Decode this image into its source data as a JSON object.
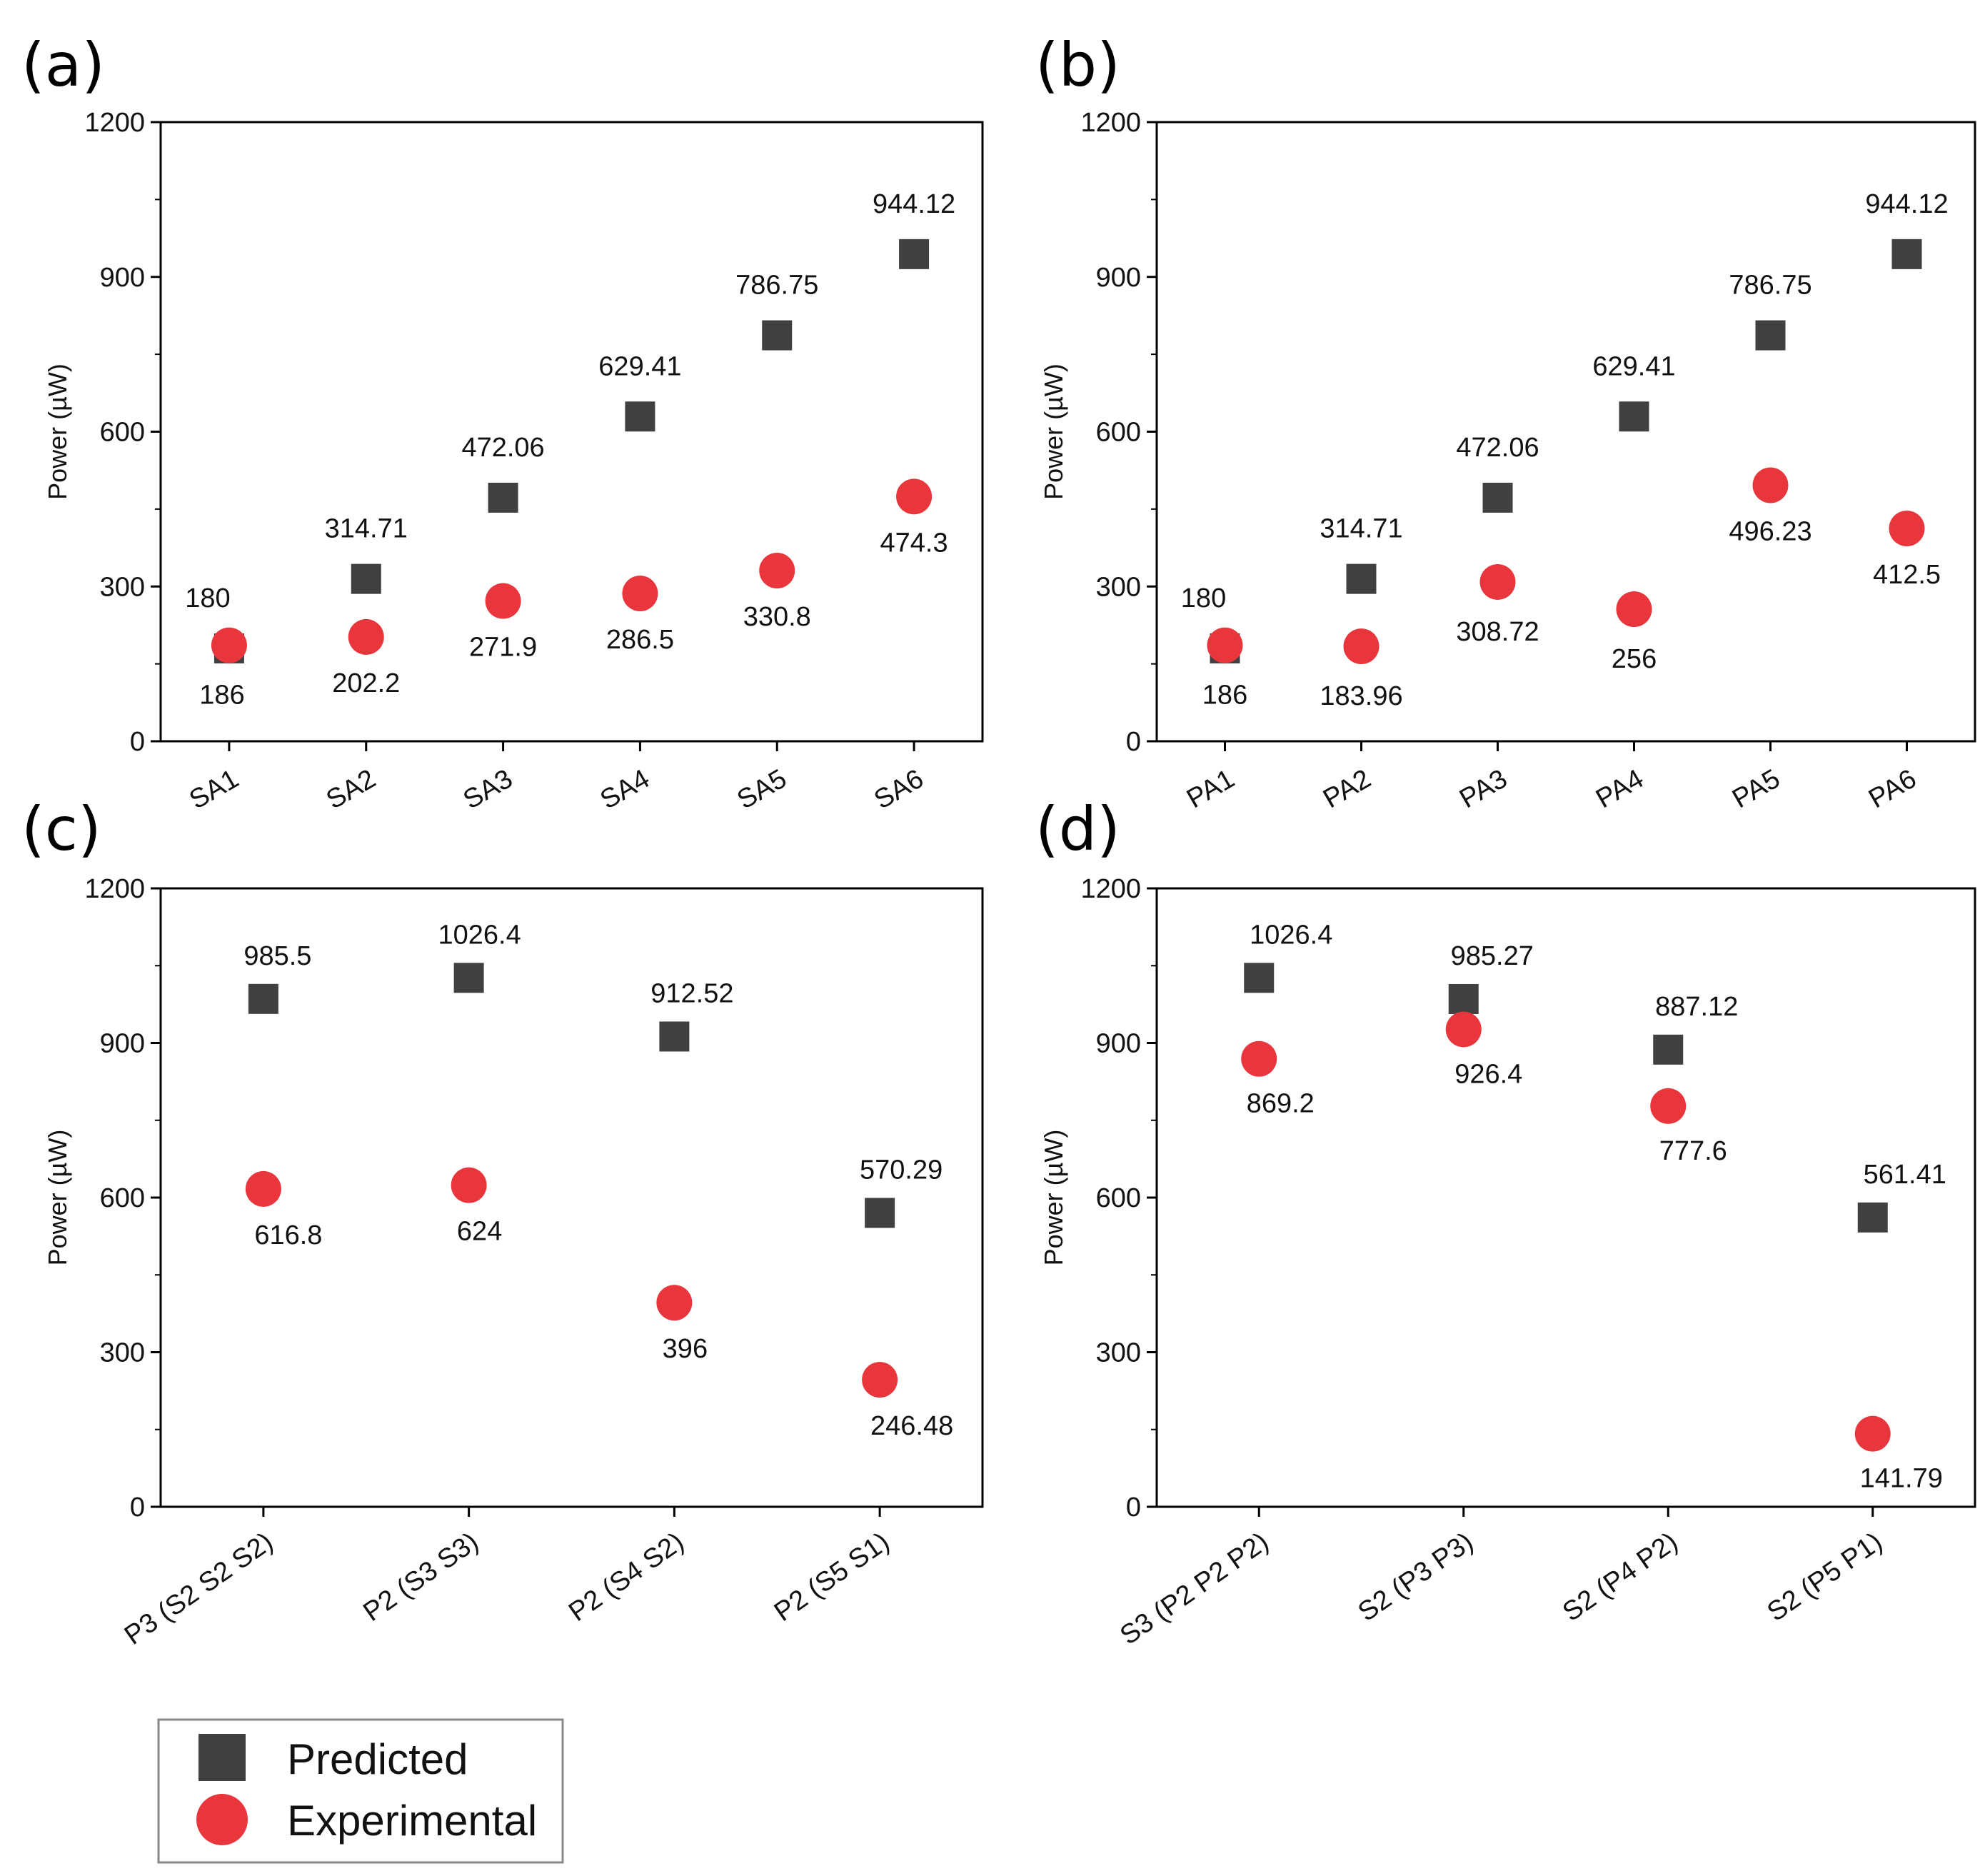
{
  "colors": {
    "predicted": "#404040",
    "experimental": "#e8363c",
    "axis": "#000000"
  },
  "legend": {
    "predicted": "Predicted",
    "experimental": "Experimental"
  },
  "chart_data": [
    {
      "id": "a",
      "panel_label": "(a)",
      "type": "scatter",
      "ylabel": "Power (µW)",
      "ylim": [
        0,
        1200
      ],
      "yticks": [
        "0",
        "300",
        "600",
        "900",
        "1200"
      ],
      "categories": [
        "SA1",
        "SA2",
        "SA3",
        "SA4",
        "SA5",
        "SA6"
      ],
      "series": [
        {
          "name": "Predicted",
          "values": [
            180,
            314.71,
            472.06,
            629.41,
            786.75,
            944.12
          ],
          "labels": [
            "180",
            "314.71",
            "472.06",
            "629.41",
            "786.75",
            "944.12"
          ]
        },
        {
          "name": "Experimental",
          "values": [
            186,
            202.2,
            271.9,
            286.5,
            330.8,
            474.3
          ],
          "labels": [
            "186",
            "202.2",
            "271.9",
            "286.5",
            "330.8",
            "474.3"
          ]
        }
      ]
    },
    {
      "id": "b",
      "panel_label": "(b)",
      "type": "scatter",
      "ylabel": "Power (µW)",
      "ylim": [
        0,
        1200
      ],
      "yticks": [
        "0",
        "300",
        "600",
        "900",
        "1200"
      ],
      "categories": [
        "PA1",
        "PA2",
        "PA3",
        "PA4",
        "PA5",
        "PA6"
      ],
      "series": [
        {
          "name": "Predicted",
          "values": [
            180,
            314.71,
            472.06,
            629.41,
            786.75,
            944.12
          ],
          "labels": [
            "180",
            "314.71",
            "472.06",
            "629.41",
            "786.75",
            "944.12"
          ]
        },
        {
          "name": "Experimental",
          "values": [
            186,
            183.96,
            308.72,
            256,
            496.23,
            412.5
          ],
          "labels": [
            "186",
            "183.96",
            "308.72",
            "256",
            "496.23",
            "412.5"
          ]
        }
      ]
    },
    {
      "id": "c",
      "panel_label": "(c)",
      "type": "scatter",
      "ylabel": "Power (µW)",
      "ylim": [
        0,
        1200
      ],
      "yticks": [
        "0",
        "300",
        "600",
        "900",
        "1200"
      ],
      "categories": [
        "P3 (S2 S2 S2)",
        "P2 (S3 S3)",
        "P2 (S4 S2)",
        "P2 (S5 S1)"
      ],
      "series": [
        {
          "name": "Predicted",
          "values": [
            985.5,
            1026.4,
            912.52,
            570.29
          ],
          "labels": [
            "985.5",
            "1026.4",
            "912.52",
            "570.29"
          ]
        },
        {
          "name": "Experimental",
          "values": [
            616.8,
            624,
            396,
            246.48
          ],
          "labels": [
            "616.8",
            "624",
            "396",
            "246.48"
          ]
        }
      ]
    },
    {
      "id": "d",
      "panel_label": "(d)",
      "type": "scatter",
      "ylabel": "Power (µW)",
      "ylim": [
        0,
        1200
      ],
      "yticks": [
        "0",
        "300",
        "600",
        "900",
        "1200"
      ],
      "categories": [
        "S3 (P2 P2 P2)",
        "S2 (P3 P3)",
        "S2 (P4 P2)",
        "S2 (P5 P1)"
      ],
      "series": [
        {
          "name": "Predicted",
          "values": [
            1026.4,
            985.27,
            887.12,
            561.41
          ],
          "labels": [
            "1026.4",
            "985.27",
            "887.12",
            "561.41"
          ]
        },
        {
          "name": "Experimental",
          "values": [
            869.2,
            926.4,
            777.6,
            141.79
          ],
          "labels": [
            "869.2",
            "926.4",
            "777.6",
            "141.79"
          ]
        }
      ]
    }
  ]
}
